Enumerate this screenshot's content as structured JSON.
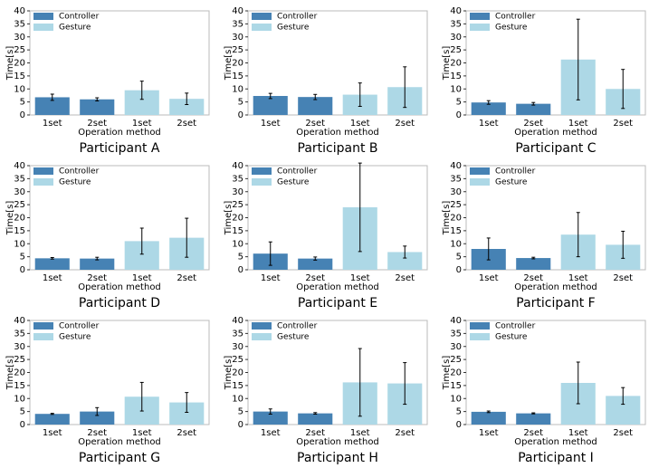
{
  "chart_data": [
    {
      "type": "bar",
      "title": "Participant A",
      "xlabel": "Operation method",
      "ylabel": "Time[s]",
      "categories": [
        "1set",
        "2set",
        "1set",
        "2set"
      ],
      "ylim": [
        0,
        40
      ],
      "yticks": [
        0,
        5,
        10,
        15,
        20,
        25,
        30,
        35,
        40
      ],
      "series": [
        {
          "name": "Controller",
          "color": "#4682b4",
          "values": [
            6.8,
            6.0,
            null,
            null
          ],
          "errors": [
            1.2,
            0.6,
            null,
            null
          ]
        },
        {
          "name": "Gesture",
          "color": "#add8e6",
          "values": [
            null,
            null,
            9.5,
            6.2
          ],
          "errors": [
            null,
            null,
            3.5,
            2.2
          ]
        }
      ]
    },
    {
      "type": "bar",
      "title": "Participant B",
      "xlabel": "Operation method",
      "ylabel": "Time[s]",
      "categories": [
        "1set",
        "2set",
        "1set",
        "2set"
      ],
      "ylim": [
        0,
        40
      ],
      "yticks": [
        0,
        5,
        10,
        15,
        20,
        25,
        30,
        35,
        40
      ],
      "series": [
        {
          "name": "Controller",
          "color": "#4682b4",
          "values": [
            7.3,
            6.9,
            null,
            null
          ],
          "errors": [
            1.0,
            1.0,
            null,
            null
          ]
        },
        {
          "name": "Gesture",
          "color": "#add8e6",
          "values": [
            null,
            null,
            7.8,
            10.7
          ],
          "errors": [
            null,
            null,
            4.5,
            7.8
          ]
        }
      ]
    },
    {
      "type": "bar",
      "title": "Participant C",
      "xlabel": "Operation method",
      "ylabel": "Time[s]",
      "categories": [
        "1set",
        "2set",
        "1set",
        "2set"
      ],
      "ylim": [
        0,
        40
      ],
      "yticks": [
        0,
        5,
        10,
        15,
        20,
        25,
        30,
        35,
        40
      ],
      "series": [
        {
          "name": "Controller",
          "color": "#4682b4",
          "values": [
            4.8,
            4.3,
            null,
            null
          ],
          "errors": [
            0.7,
            0.5,
            null,
            null
          ]
        },
        {
          "name": "Gesture",
          "color": "#add8e6",
          "values": [
            null,
            null,
            21.3,
            10.0
          ],
          "errors": [
            null,
            null,
            15.5,
            7.5
          ]
        }
      ]
    },
    {
      "type": "bar",
      "title": "Participant D",
      "xlabel": "Operation method",
      "ylabel": "Time[s]",
      "categories": [
        "1set",
        "2set",
        "1set",
        "2set"
      ],
      "ylim": [
        0,
        40
      ],
      "yticks": [
        0,
        5,
        10,
        15,
        20,
        25,
        30,
        35,
        40
      ],
      "series": [
        {
          "name": "Controller",
          "color": "#4682b4",
          "values": [
            4.4,
            4.3,
            null,
            null
          ],
          "errors": [
            0.3,
            0.5,
            null,
            null
          ]
        },
        {
          "name": "Gesture",
          "color": "#add8e6",
          "values": [
            null,
            null,
            11.0,
            12.3
          ],
          "errors": [
            null,
            null,
            5.0,
            7.5
          ]
        }
      ]
    },
    {
      "type": "bar",
      "title": "Participant E",
      "xlabel": "Operation method",
      "ylabel": "Time[s]",
      "categories": [
        "1set",
        "2set",
        "1set",
        "2set"
      ],
      "ylim": [
        0,
        40
      ],
      "yticks": [
        0,
        5,
        10,
        15,
        20,
        25,
        30,
        35,
        40
      ],
      "series": [
        {
          "name": "Controller",
          "color": "#4682b4",
          "values": [
            6.2,
            4.3,
            null,
            null
          ],
          "errors": [
            4.5,
            0.6,
            null,
            null
          ]
        },
        {
          "name": "Gesture",
          "color": "#add8e6",
          "values": [
            null,
            null,
            24.0,
            6.8
          ],
          "errors": [
            null,
            null,
            17.0,
            2.3
          ]
        }
      ]
    },
    {
      "type": "bar",
      "title": "Participant F",
      "xlabel": "Operation method",
      "ylabel": "Time[s]",
      "categories": [
        "1set",
        "2set",
        "1set",
        "2set"
      ],
      "ylim": [
        0,
        40
      ],
      "yticks": [
        0,
        5,
        10,
        15,
        20,
        25,
        30,
        35,
        40
      ],
      "series": [
        {
          "name": "Controller",
          "color": "#4682b4",
          "values": [
            8.0,
            4.5,
            null,
            null
          ],
          "errors": [
            4.2,
            0.3,
            null,
            null
          ]
        },
        {
          "name": "Gesture",
          "color": "#add8e6",
          "values": [
            null,
            null,
            13.5,
            9.6
          ],
          "errors": [
            null,
            null,
            8.5,
            5.2
          ]
        }
      ]
    },
    {
      "type": "bar",
      "title": "Participant G",
      "xlabel": "Operation method",
      "ylabel": "Time[s]",
      "categories": [
        "1set",
        "2set",
        "1set",
        "2set"
      ],
      "ylim": [
        0,
        40
      ],
      "yticks": [
        0,
        5,
        10,
        15,
        20,
        25,
        30,
        35,
        40
      ],
      "series": [
        {
          "name": "Controller",
          "color": "#4682b4",
          "values": [
            4.1,
            5.0,
            null,
            null
          ],
          "errors": [
            0.2,
            1.5,
            null,
            null
          ]
        },
        {
          "name": "Gesture",
          "color": "#add8e6",
          "values": [
            null,
            null,
            10.7,
            8.5
          ],
          "errors": [
            null,
            null,
            5.5,
            3.8
          ]
        }
      ]
    },
    {
      "type": "bar",
      "title": "Participant H",
      "xlabel": "Operation method",
      "ylabel": "Time[s]",
      "categories": [
        "1set",
        "2set",
        "1set",
        "2set"
      ],
      "ylim": [
        0,
        40
      ],
      "yticks": [
        0,
        5,
        10,
        15,
        20,
        25,
        30,
        35,
        40
      ],
      "series": [
        {
          "name": "Controller",
          "color": "#4682b4",
          "values": [
            5.0,
            4.3,
            null,
            null
          ],
          "errors": [
            1.0,
            0.3,
            null,
            null
          ]
        },
        {
          "name": "Gesture",
          "color": "#add8e6",
          "values": [
            null,
            null,
            16.2,
            15.8
          ],
          "errors": [
            null,
            null,
            13.0,
            8.0
          ]
        }
      ]
    },
    {
      "type": "bar",
      "title": "Participant I",
      "xlabel": "Operation method",
      "ylabel": "Time[s]",
      "categories": [
        "1set",
        "2set",
        "1set",
        "2set"
      ],
      "ylim": [
        0,
        40
      ],
      "yticks": [
        0,
        5,
        10,
        15,
        20,
        25,
        30,
        35,
        40
      ],
      "series": [
        {
          "name": "Controller",
          "color": "#4682b4",
          "values": [
            4.9,
            4.3,
            null,
            null
          ],
          "errors": [
            0.3,
            0.2,
            null,
            null
          ]
        },
        {
          "name": "Gesture",
          "color": "#add8e6",
          "values": [
            null,
            null,
            16.0,
            11.0
          ],
          "errors": [
            null,
            null,
            8.0,
            3.2
          ]
        }
      ]
    }
  ]
}
